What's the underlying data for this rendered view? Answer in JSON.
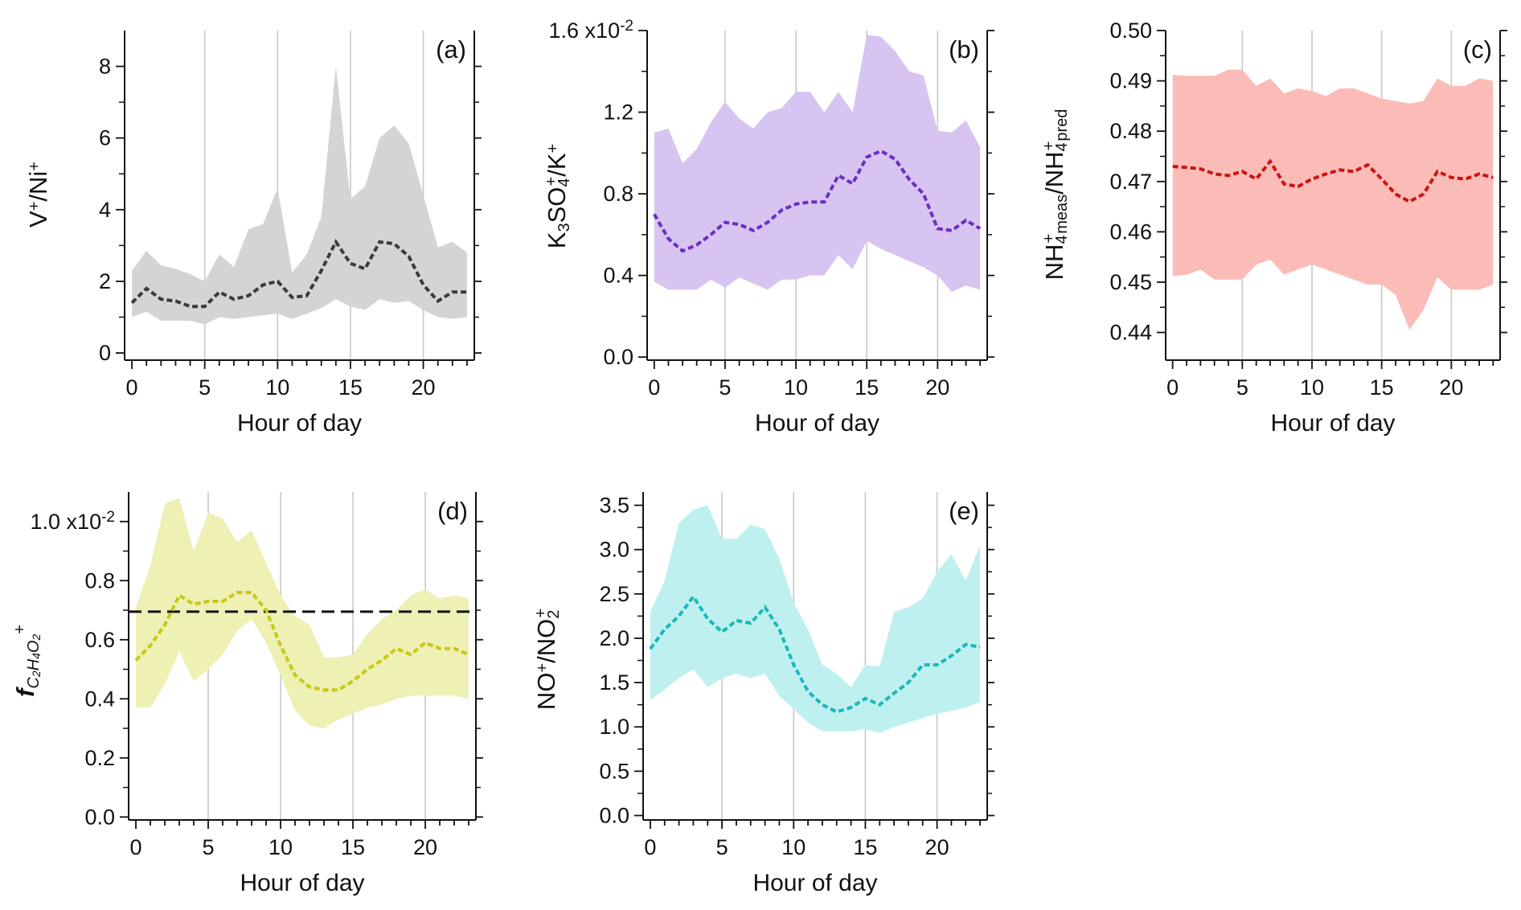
{
  "figure": {
    "x_title": "Hour of day"
  },
  "chart_data": [
    {
      "id": "a",
      "type": "line",
      "panel_label": "(a)",
      "title": "",
      "xlabel": "Hour of day",
      "ylabel_parts": [
        "V",
        "+",
        "/Ni",
        "+"
      ],
      "xlim": [
        -0.5,
        23.5
      ],
      "ylim": [
        -0.2,
        9.0
      ],
      "xticks": [
        0,
        5,
        10,
        15,
        20
      ],
      "xtick_labels": [
        "0",
        "5",
        "10",
        "15",
        "20"
      ],
      "yticks": [
        0,
        2,
        4,
        6,
        8
      ],
      "ytick_labels": [
        "0",
        "2",
        "4",
        "6",
        "8"
      ],
      "exponent_label": "",
      "fill_color": "#d4d4d4",
      "line_color": "#3a3a3a",
      "x": [
        0,
        1,
        2,
        3,
        4,
        5,
        6,
        7,
        8,
        9,
        10,
        11,
        12,
        13,
        14,
        15,
        16,
        17,
        18,
        19,
        20,
        21,
        22,
        23
      ],
      "series": [
        {
          "name": "median",
          "values": [
            1.4,
            1.8,
            1.5,
            1.45,
            1.3,
            1.3,
            1.7,
            1.5,
            1.6,
            1.9,
            2.0,
            1.55,
            1.6,
            2.3,
            3.1,
            2.5,
            2.35,
            3.1,
            3.05,
            2.7,
            1.9,
            1.45,
            1.7,
            1.7
          ]
        },
        {
          "name": "upper",
          "values": [
            2.3,
            2.85,
            2.45,
            2.35,
            2.2,
            2.0,
            2.75,
            2.4,
            3.45,
            3.6,
            4.6,
            2.25,
            2.75,
            3.8,
            8.0,
            4.3,
            4.65,
            6.0,
            6.35,
            5.85,
            4.4,
            2.95,
            3.1,
            2.8
          ]
        },
        {
          "name": "lower",
          "values": [
            1.0,
            1.15,
            0.9,
            0.9,
            0.9,
            0.8,
            1.0,
            0.95,
            1.0,
            1.05,
            1.1,
            0.95,
            1.1,
            1.25,
            1.5,
            1.3,
            1.2,
            1.5,
            1.4,
            1.45,
            1.2,
            1.0,
            0.95,
            1.0
          ]
        }
      ],
      "reference_line": null
    },
    {
      "id": "b",
      "type": "line",
      "panel_label": "(b)",
      "title": "",
      "xlabel": "Hour of day",
      "ylabel_parts": [
        "K",
        "3",
        "SO",
        "4",
        "+",
        "/K",
        "+"
      ],
      "xlim": [
        -0.5,
        23.5
      ],
      "ylim": [
        -0.015,
        1.6
      ],
      "xticks": [
        0,
        5,
        10,
        15,
        20
      ],
      "xtick_labels": [
        "0",
        "5",
        "10",
        "15",
        "20"
      ],
      "yticks": [
        0,
        0.4,
        0.8,
        1.2,
        1.6
      ],
      "ytick_labels": [
        "0.0",
        "0.4",
        "0.8",
        "1.2",
        ""
      ],
      "exponent_label": "1.6 x10",
      "exponent_power": "-2",
      "fill_color": "#d8c4f0",
      "line_color": "#6b2fc4",
      "x": [
        0,
        1,
        2,
        3,
        4,
        5,
        6,
        7,
        8,
        9,
        10,
        11,
        12,
        13,
        14,
        15,
        16,
        17,
        18,
        19,
        20,
        21,
        22,
        23
      ],
      "series": [
        {
          "name": "median",
          "values": [
            0.7,
            0.58,
            0.52,
            0.55,
            0.6,
            0.66,
            0.65,
            0.62,
            0.66,
            0.72,
            0.75,
            0.76,
            0.76,
            0.89,
            0.85,
            0.98,
            1.01,
            0.97,
            0.87,
            0.8,
            0.63,
            0.62,
            0.67,
            0.63
          ]
        },
        {
          "name": "upper",
          "values": [
            1.1,
            1.12,
            0.95,
            1.02,
            1.15,
            1.25,
            1.17,
            1.12,
            1.2,
            1.22,
            1.3,
            1.3,
            1.2,
            1.3,
            1.2,
            1.58,
            1.57,
            1.5,
            1.4,
            1.38,
            1.11,
            1.1,
            1.16,
            1.03
          ]
        },
        {
          "name": "lower",
          "values": [
            0.37,
            0.33,
            0.33,
            0.33,
            0.38,
            0.34,
            0.39,
            0.36,
            0.33,
            0.38,
            0.38,
            0.4,
            0.4,
            0.5,
            0.43,
            0.57,
            0.53,
            0.5,
            0.47,
            0.44,
            0.4,
            0.32,
            0.35,
            0.33
          ]
        }
      ],
      "reference_line": null
    },
    {
      "id": "c",
      "type": "line",
      "panel_label": "(c)",
      "title": "",
      "xlabel": "Hour of day",
      "ylabel_parts": [
        "NH",
        "4",
        "+",
        "meas",
        "/NH",
        "4",
        "+",
        "pred"
      ],
      "xlim": [
        -0.5,
        23.5
      ],
      "ylim": [
        0.4345,
        0.5
      ],
      "xticks": [
        0,
        5,
        10,
        15,
        20
      ],
      "xtick_labels": [
        "0",
        "5",
        "10",
        "15",
        "20"
      ],
      "yticks": [
        0.44,
        0.45,
        0.46,
        0.47,
        0.48,
        0.49,
        0.5
      ],
      "ytick_labels": [
        "0.44",
        "0.45",
        "0.46",
        "0.47",
        "0.48",
        "0.49",
        "0.50"
      ],
      "exponent_label": "",
      "fill_color": "#fbbcb8",
      "line_color": "#cc1414",
      "x": [
        0,
        1,
        2,
        3,
        4,
        5,
        6,
        7,
        8,
        9,
        10,
        11,
        12,
        13,
        14,
        15,
        16,
        17,
        18,
        19,
        20,
        21,
        22,
        23
      ],
      "series": [
        {
          "name": "median",
          "values": [
            0.473,
            0.4728,
            0.4725,
            0.4715,
            0.4712,
            0.472,
            0.4705,
            0.474,
            0.4695,
            0.469,
            0.4705,
            0.4715,
            0.4723,
            0.472,
            0.4733,
            0.4705,
            0.4675,
            0.466,
            0.4675,
            0.472,
            0.4708,
            0.4705,
            0.4715,
            0.4708
          ]
        },
        {
          "name": "upper",
          "values": [
            0.4912,
            0.491,
            0.491,
            0.491,
            0.4922,
            0.4922,
            0.489,
            0.4905,
            0.4875,
            0.4885,
            0.488,
            0.487,
            0.4885,
            0.4885,
            0.4875,
            0.4865,
            0.486,
            0.4855,
            0.486,
            0.4905,
            0.489,
            0.489,
            0.4905,
            0.49
          ]
        },
        {
          "name": "lower",
          "values": [
            0.4512,
            0.4515,
            0.4525,
            0.4505,
            0.4505,
            0.4505,
            0.4535,
            0.4545,
            0.4515,
            0.4525,
            0.4535,
            0.4525,
            0.4515,
            0.4505,
            0.4495,
            0.4495,
            0.4475,
            0.4405,
            0.4445,
            0.451,
            0.4485,
            0.4485,
            0.4485,
            0.4495
          ]
        }
      ],
      "reference_line": null
    },
    {
      "id": "d",
      "type": "line",
      "panel_label": "(d)",
      "title": "",
      "xlabel": "Hour of day",
      "ylabel_parts": [
        "f",
        "C2H4O2",
        "+"
      ],
      "xlim": [
        -0.5,
        23.5
      ],
      "ylim": [
        -0.01,
        1.1
      ],
      "xticks": [
        0,
        5,
        10,
        15,
        20
      ],
      "xtick_labels": [
        "0",
        "5",
        "10",
        "15",
        "20"
      ],
      "yticks": [
        0,
        0.2,
        0.4,
        0.6,
        0.8,
        1.0
      ],
      "ytick_labels": [
        "0.0",
        "0.2",
        "0.4",
        "0.6",
        "0.8",
        ""
      ],
      "exponent_label": "1.0 x10",
      "exponent_power": "-2",
      "fill_color": "#eef0b4",
      "line_color": "#c8c814",
      "x": [
        0,
        1,
        2,
        3,
        4,
        5,
        6,
        7,
        8,
        9,
        10,
        11,
        12,
        13,
        14,
        15,
        16,
        17,
        18,
        19,
        20,
        21,
        22,
        23
      ],
      "series": [
        {
          "name": "median",
          "values": [
            0.53,
            0.58,
            0.65,
            0.75,
            0.72,
            0.73,
            0.73,
            0.76,
            0.76,
            0.7,
            0.58,
            0.48,
            0.44,
            0.43,
            0.43,
            0.46,
            0.5,
            0.53,
            0.57,
            0.55,
            0.59,
            0.57,
            0.57,
            0.55
          ]
        },
        {
          "name": "upper",
          "values": [
            0.71,
            0.85,
            1.06,
            1.08,
            0.9,
            1.03,
            1.01,
            0.93,
            0.97,
            0.86,
            0.75,
            0.68,
            0.65,
            0.54,
            0.54,
            0.55,
            0.62,
            0.67,
            0.7,
            0.75,
            0.77,
            0.74,
            0.75,
            0.74
          ]
        },
        {
          "name": "lower",
          "values": [
            0.37,
            0.37,
            0.45,
            0.56,
            0.46,
            0.5,
            0.55,
            0.63,
            0.67,
            0.59,
            0.48,
            0.36,
            0.31,
            0.3,
            0.33,
            0.35,
            0.37,
            0.38,
            0.4,
            0.41,
            0.41,
            0.41,
            0.41,
            0.4
          ]
        }
      ],
      "reference_line": {
        "y": 0.695,
        "style": "dashed",
        "color": "#111111"
      }
    },
    {
      "id": "e",
      "type": "line",
      "panel_label": "(e)",
      "title": "",
      "xlabel": "Hour of day",
      "ylabel_parts": [
        "NO",
        "+",
        "/NO",
        "2",
        "+"
      ],
      "xlim": [
        -0.5,
        23.5
      ],
      "ylim": [
        -0.05,
        3.65
      ],
      "xticks": [
        0,
        5,
        10,
        15,
        20
      ],
      "xtick_labels": [
        "0",
        "5",
        "10",
        "15",
        "20"
      ],
      "yticks": [
        0,
        0.5,
        1.0,
        1.5,
        2.0,
        2.5,
        3.0,
        3.5
      ],
      "ytick_labels": [
        "0.0",
        "0.5",
        "1.0",
        "1.5",
        "2.0",
        "2.5",
        "3.0",
        "3.5"
      ],
      "exponent_label": "",
      "fill_color": "#bff0f0",
      "line_color": "#1ab8b8",
      "x": [
        0,
        1,
        2,
        3,
        4,
        5,
        6,
        7,
        8,
        9,
        10,
        11,
        12,
        13,
        14,
        15,
        16,
        17,
        18,
        19,
        20,
        21,
        22,
        23
      ],
      "series": [
        {
          "name": "median",
          "values": [
            1.88,
            2.1,
            2.25,
            2.47,
            2.22,
            2.07,
            2.2,
            2.17,
            2.35,
            2.1,
            1.7,
            1.4,
            1.25,
            1.17,
            1.22,
            1.32,
            1.25,
            1.38,
            1.5,
            1.7,
            1.7,
            1.8,
            1.93,
            1.9
          ]
        },
        {
          "name": "upper",
          "values": [
            2.3,
            2.65,
            3.3,
            3.45,
            3.5,
            3.12,
            3.12,
            3.28,
            3.23,
            2.9,
            2.4,
            2.1,
            1.7,
            1.6,
            1.45,
            1.7,
            1.68,
            2.3,
            2.35,
            2.45,
            2.75,
            2.95,
            2.65,
            3.05
          ]
        },
        {
          "name": "lower",
          "values": [
            1.3,
            1.42,
            1.55,
            1.65,
            1.45,
            1.55,
            1.6,
            1.55,
            1.6,
            1.35,
            1.2,
            1.05,
            0.95,
            0.95,
            0.95,
            0.97,
            0.93,
            1.0,
            1.05,
            1.1,
            1.15,
            1.18,
            1.22,
            1.28
          ]
        }
      ],
      "reference_line": null
    }
  ]
}
